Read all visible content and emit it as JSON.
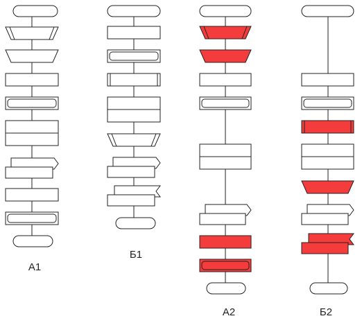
{
  "columns": [
    {
      "label": "А1"
    },
    {
      "label": "Б1"
    },
    {
      "label": "А2"
    },
    {
      "label": "Б2"
    }
  ]
}
